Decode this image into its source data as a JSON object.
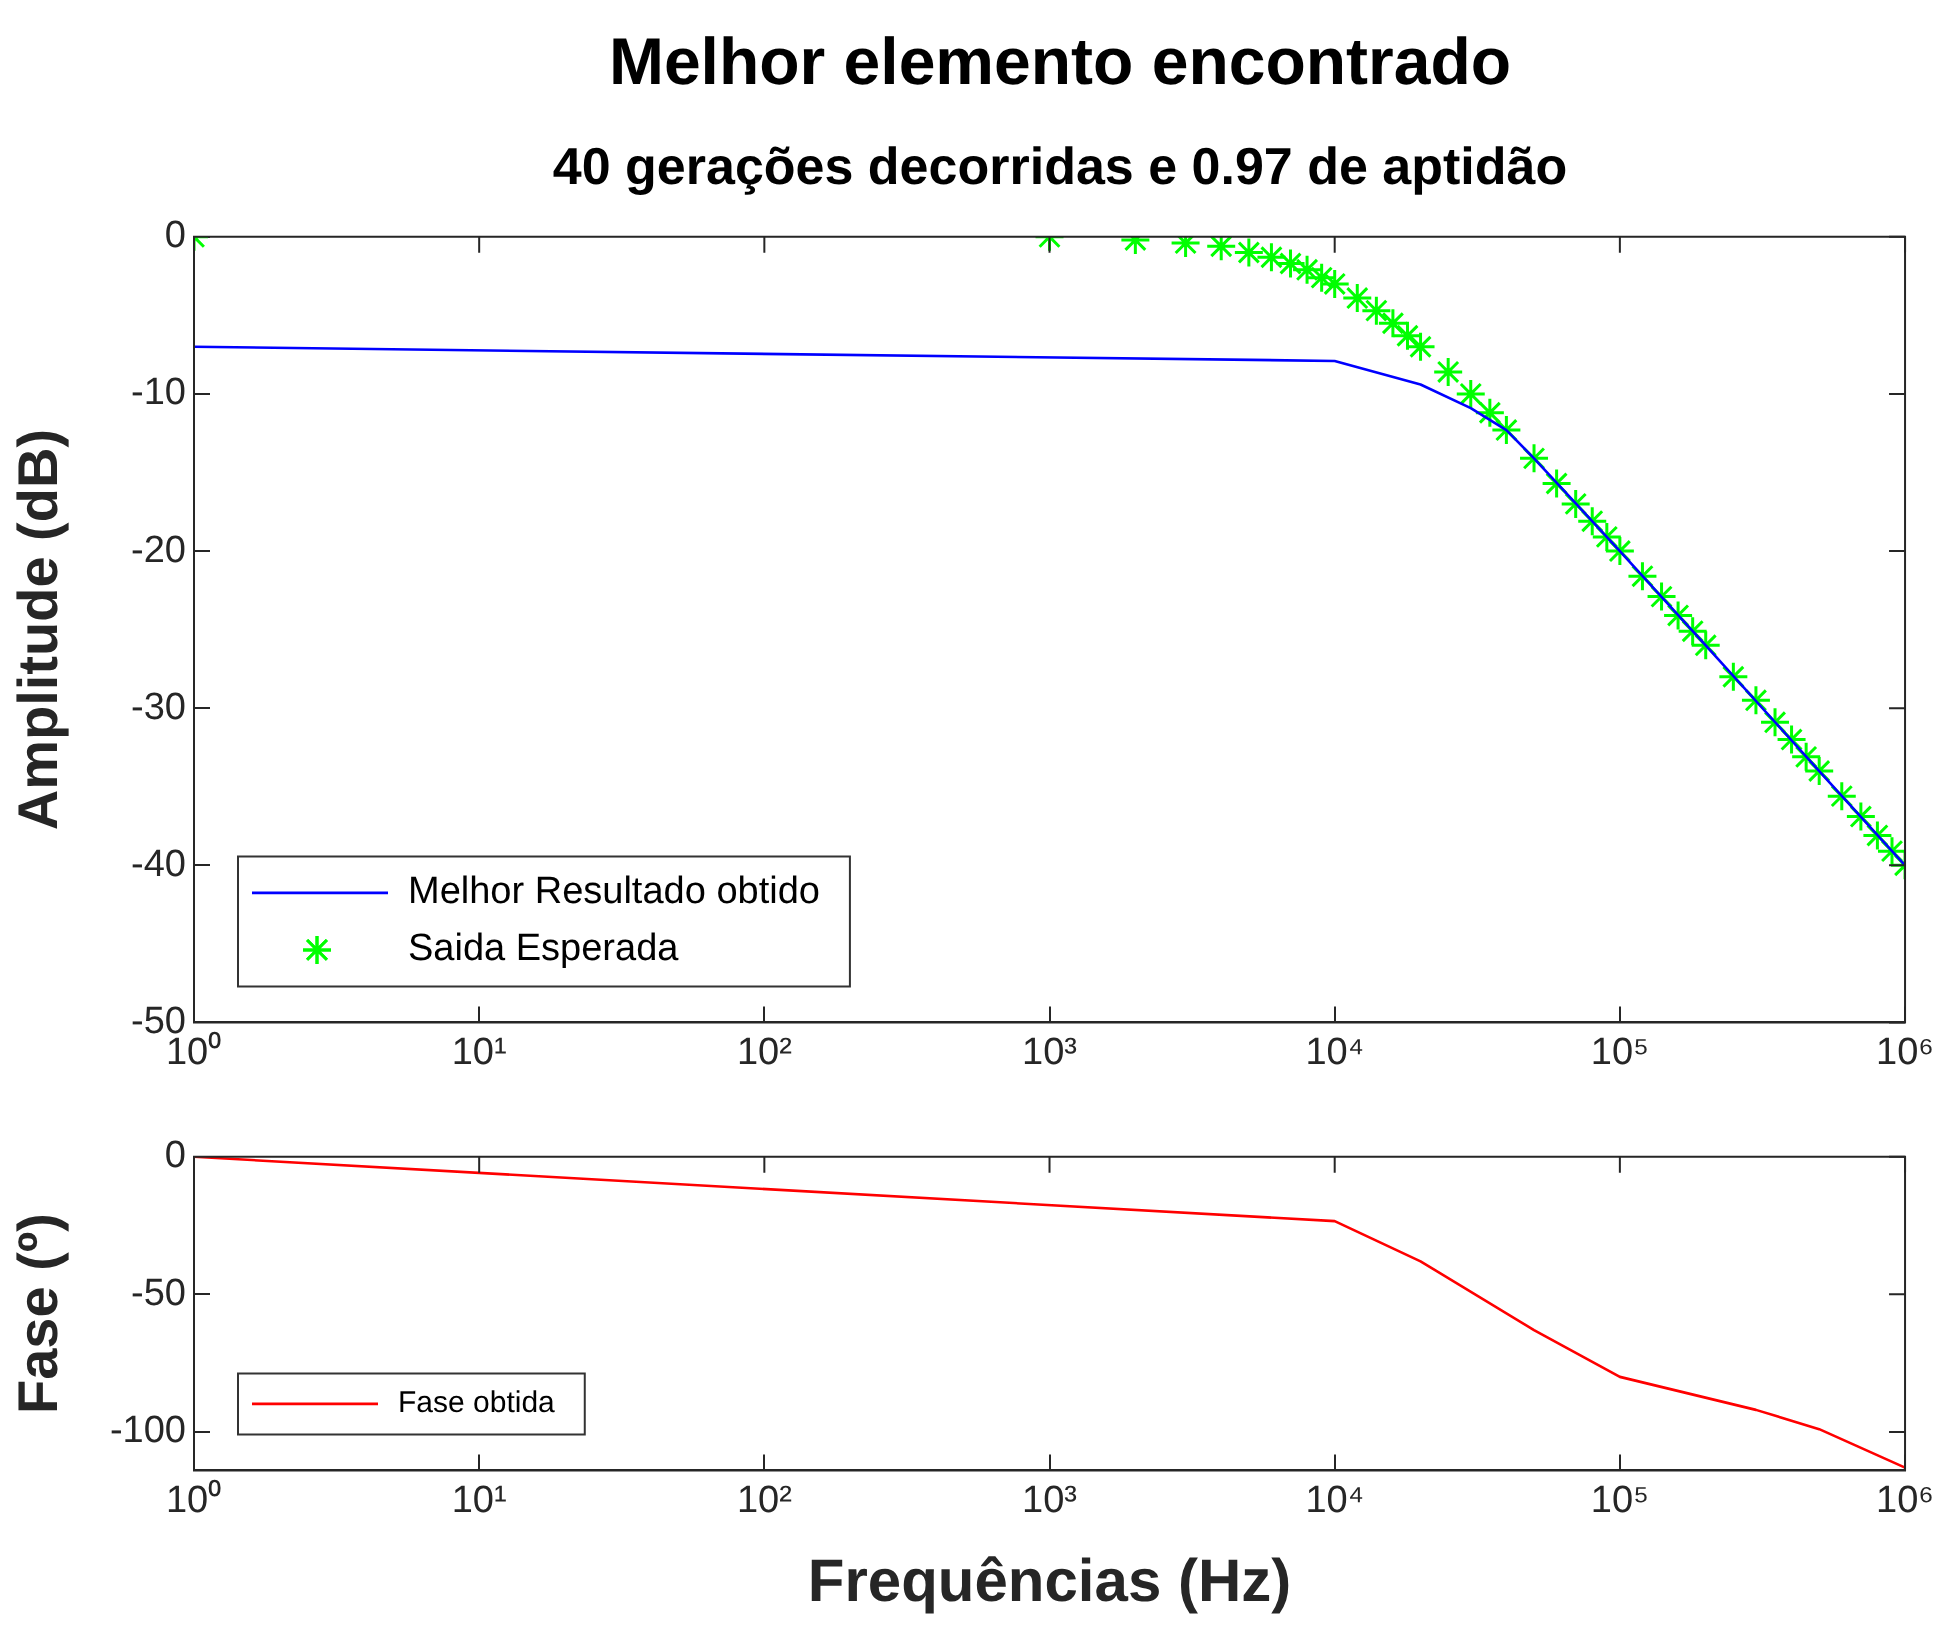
{
  "chart_data": [
    {
      "type": "line",
      "title": "Melhor elemento encontrado",
      "subtitle": "40 gerações decorridas e 0.97 de aptidão",
      "ylabel": "Amplitude (dB)",
      "log": "x",
      "grid": false,
      "legend": "bottom left",
      "xlim": [
        1,
        1000000
      ],
      "xticks": [
        {
          "value": 1,
          "label": "10⁰"
        },
        {
          "value": 10,
          "label": "10¹"
        },
        {
          "value": 100,
          "label": "10²"
        },
        {
          "value": 1000,
          "label": "10³"
        },
        {
          "value": 10000,
          "label": "10⁴"
        },
        {
          "value": 100000,
          "label": "10⁵"
        },
        {
          "value": 1000000,
          "label": "10⁶"
        }
      ],
      "ylim": [
        -50,
        0
      ],
      "yticks": [
        -50,
        -40,
        -30,
        -20,
        -10,
        0
      ],
      "series": [
        {
          "name": "Melhor Resultado obtido",
          "color": "#0000ff",
          "marker": "none",
          "line_style": "solid",
          "x": [
            1,
            10000,
            20000,
            30000,
            40000,
            50000,
            100000,
            200000,
            500000,
            1000000
          ],
          "values": [
            -7.0,
            -7.9,
            -9.4,
            -10.9,
            -12.3,
            -14.1,
            -20.0,
            -26.0,
            -34.0,
            -40.0
          ]
        },
        {
          "name": "Saida Esperada",
          "type": "scatter",
          "color": "#00ff00",
          "marker": "cross",
          "x": [
            1,
            1000,
            2000,
            3000,
            4000,
            5000,
            6000,
            7000,
            8000,
            9000,
            10000,
            12000,
            14000,
            16000,
            18000,
            20000,
            25000,
            30000,
            35000,
            40000,
            50000,
            60000,
            70000,
            80000,
            90000,
            100000,
            120000,
            140000,
            160000,
            180000,
            200000,
            250000,
            300000,
            350000,
            400000,
            450000,
            500000,
            600000,
            700000,
            800000,
            900000,
            1000000
          ],
          "values": [
            0,
            0,
            -0.2,
            -0.4,
            -0.6,
            -1.0,
            -1.3,
            -1.7,
            -2.1,
            -2.6,
            -3.0,
            -3.9,
            -4.7,
            -5.5,
            -6.3,
            -7.0,
            -8.6,
            -10.0,
            -11.2,
            -12.3,
            -14.1,
            -15.7,
            -17.0,
            -18.1,
            -19.1,
            -20.0,
            -21.6,
            -22.9,
            -24.1,
            -25.1,
            -26.0,
            -28.0,
            -29.5,
            -30.9,
            -32.0,
            -33.1,
            -34.0,
            -35.6,
            -36.9,
            -38.1,
            -39.1,
            -40.0
          ]
        }
      ]
    },
    {
      "type": "line",
      "xlabel": "Frequências (Hz)",
      "ylabel": "Fase (º)",
      "log": "x",
      "grid": false,
      "legend": "bottom left",
      "xlim": [
        1,
        1000000
      ],
      "xticks": [
        {
          "value": 1,
          "label": "10⁰"
        },
        {
          "value": 10,
          "label": "10¹"
        },
        {
          "value": 100,
          "label": "10²"
        },
        {
          "value": 1000,
          "label": "10³"
        },
        {
          "value": 10000,
          "label": "10⁴"
        },
        {
          "value": 100000,
          "label": "10⁵"
        },
        {
          "value": 1000000,
          "label": "10⁶"
        }
      ],
      "ylim": [
        -114,
        0
      ],
      "yticks": [
        -100,
        -50,
        0
      ],
      "series": [
        {
          "name": "Fase obtida",
          "color": "#ff0000",
          "marker": "none",
          "line_style": "solid",
          "x": [
            1,
            10000,
            20000,
            50000,
            100000,
            300000,
            500000,
            1000000
          ],
          "values": [
            0,
            -23.4,
            -38,
            -63,
            -80,
            -92,
            -99,
            -113
          ]
        }
      ]
    }
  ]
}
